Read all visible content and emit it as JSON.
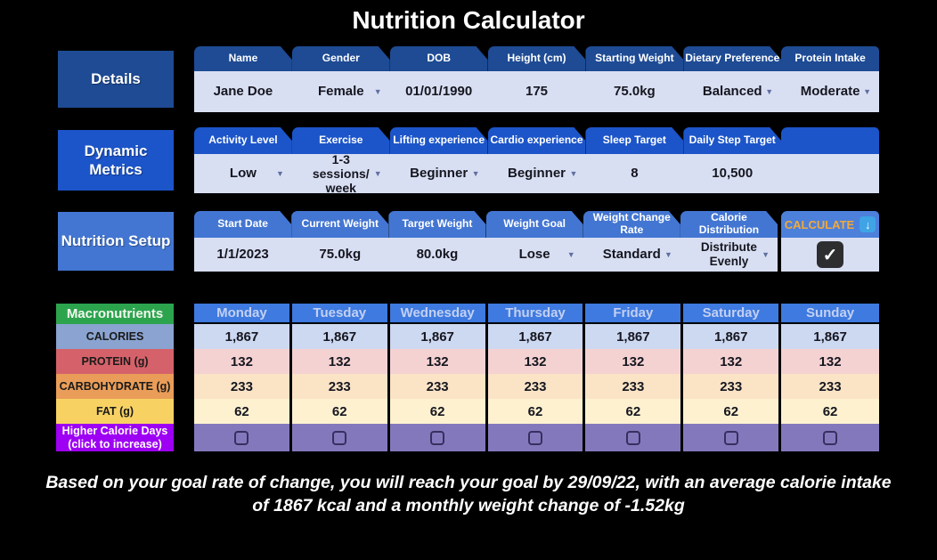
{
  "title": "Nutrition Calculator",
  "colors": {
    "background": "#000000",
    "details_blue": "#1E4B94",
    "dynamic_blue": "#1C55C9",
    "setup_blue": "#4376D2",
    "value_row": "#D9DFF3",
    "day_header_blue": "#3E7ADF",
    "calories_row": "#CDD8F1",
    "protein_row": "#F5D2D2",
    "carbohydrate_row": "#FBE3C6",
    "fat_row": "#FDF1D0",
    "higher_calorie_row": "#8478BD",
    "macronutrients_green": "#2CA44E",
    "higher_calorie_purple": "#9D00F2",
    "calculate_orange": "#F2A93B",
    "calc_icon_blue": "#3FA3E6"
  },
  "sections": {
    "details": {
      "label": "Details",
      "columns": [
        {
          "header": "Name",
          "value": "Jane Doe",
          "dropdown": false
        },
        {
          "header": "Gender",
          "value": "Female",
          "dropdown": true
        },
        {
          "header": "DOB",
          "value": "01/01/1990",
          "dropdown": false
        },
        {
          "header": "Height (cm)",
          "value": "175",
          "dropdown": false
        },
        {
          "header": "Starting Weight",
          "value": "75.0kg",
          "dropdown": false
        },
        {
          "header": "Dietary Preference",
          "value": "Balanced",
          "dropdown": true
        },
        {
          "header": "Protein Intake",
          "value": "Moderate",
          "dropdown": true
        }
      ]
    },
    "dynamic_metrics": {
      "label": "Dynamic Metrics",
      "columns": [
        {
          "header": "Activity Level",
          "value": "Low",
          "dropdown": true
        },
        {
          "header": "Exercise",
          "value": "1-3 sessions/ week",
          "dropdown": true
        },
        {
          "header": "Lifting experience",
          "value": "Beginner",
          "dropdown": true
        },
        {
          "header": "Cardio experience",
          "value": "Beginner",
          "dropdown": true
        },
        {
          "header": "Sleep Target",
          "value": "8",
          "dropdown": false
        },
        {
          "header": "Daily Step Target",
          "value": "10,500",
          "dropdown": false
        }
      ]
    },
    "nutrition_setup": {
      "label": "Nutrition Setup",
      "columns": [
        {
          "header": "Start Date",
          "value": "1/1/2023",
          "dropdown": false
        },
        {
          "header": "Current Weight",
          "value": "75.0kg",
          "dropdown": false
        },
        {
          "header": "Target Weight",
          "value": "80.0kg",
          "dropdown": false
        },
        {
          "header": "Weight Goal",
          "value": "Lose",
          "dropdown": true
        },
        {
          "header": "Weight Change Rate",
          "value": "Standard",
          "dropdown": true
        },
        {
          "header": "Calorie Distribution",
          "value": "Distribute Evenly",
          "dropdown": true
        }
      ],
      "calculate": {
        "label": "CALCULATE",
        "icon": "download-arrow-icon",
        "icon_glyph": "↓",
        "checkbox_checked": true,
        "checkmark_glyph": "✓"
      }
    }
  },
  "macro_table": {
    "corner_label": "Macronutrients",
    "row_labels": [
      "CALORIES",
      "PROTEIN (g)",
      "CARBOHYDRATE (g)",
      "FAT (g)",
      "Higher Calorie Days (click to increase)"
    ],
    "days": [
      "Monday",
      "Tuesday",
      "Wednesday",
      "Thursday",
      "Friday",
      "Saturday",
      "Sunday"
    ],
    "rows": {
      "calories": [
        "1,867",
        "1,867",
        "1,867",
        "1,867",
        "1,867",
        "1,867",
        "1,867"
      ],
      "protein": [
        "132",
        "132",
        "132",
        "132",
        "132",
        "132",
        "132"
      ],
      "carbohydrate": [
        "233",
        "233",
        "233",
        "233",
        "233",
        "233",
        "233"
      ],
      "fat": [
        "62",
        "62",
        "62",
        "62",
        "62",
        "62",
        "62"
      ]
    },
    "higher_calorie_days_checked": [
      false,
      false,
      false,
      false,
      false,
      false,
      false
    ]
  },
  "summary": "Based on your goal rate of change, you will reach your goal by 29/09/22, with an average calorie intake of 1867 kcal and a monthly weight change of -1.52kg"
}
